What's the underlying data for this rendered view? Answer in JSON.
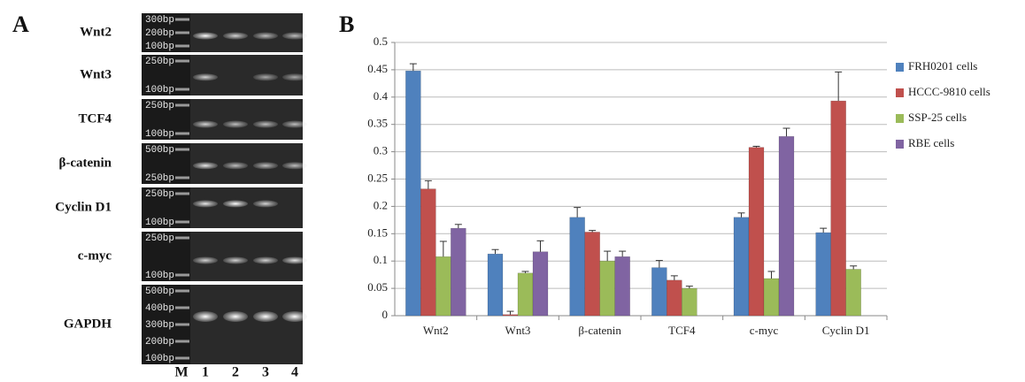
{
  "panel_a": {
    "label": "A",
    "lanes": [
      "M",
      "1",
      "2",
      "3",
      "4"
    ],
    "rows": [
      {
        "gene": "Wnt2",
        "markers": [
          "300bp",
          "200bp",
          "100bp"
        ]
      },
      {
        "gene": "Wnt3",
        "markers": [
          "250bp",
          "100bp"
        ]
      },
      {
        "gene": "TCF4",
        "markers": [
          "250bp",
          "100bp"
        ]
      },
      {
        "gene": "β-catenin",
        "markers": [
          "500bp",
          "250bp"
        ]
      },
      {
        "gene": "Cyclin D1",
        "markers": [
          "250bp",
          "100bp"
        ]
      },
      {
        "gene": "c-myc",
        "markers": [
          "250bp",
          "100bp"
        ]
      },
      {
        "gene": "GAPDH",
        "markers": [
          "500bp",
          "400bp",
          "300bp",
          "200bp",
          "100bp"
        ]
      }
    ]
  },
  "chart_data": {
    "type": "bar",
    "panel_label": "B",
    "categories": [
      "Wnt2",
      "Wnt3",
      "β-catenin",
      "TCF4",
      "c-myc",
      "Cyclin D1"
    ],
    "series": [
      {
        "name": "FRH0201 cells",
        "color": "#4f81bd",
        "values": [
          0.448,
          0.113,
          0.18,
          0.088,
          0.18,
          0.152
        ],
        "errors": [
          0.013,
          0.008,
          0.018,
          0.013,
          0.008,
          0.008
        ]
      },
      {
        "name": "HCCC-9810 cells",
        "color": "#c0504d",
        "values": [
          0.232,
          0.002,
          0.153,
          0.065,
          0.308,
          0.393
        ],
        "errors": [
          0.015,
          0.006,
          0.003,
          0.008,
          0.002,
          0.053
        ]
      },
      {
        "name": "SSP-25 cells",
        "color": "#9bbb59",
        "values": [
          0.108,
          0.078,
          0.1,
          0.05,
          0.068,
          0.085
        ],
        "errors": [
          0.028,
          0.003,
          0.018,
          0.004,
          0.013,
          0.006
        ]
      },
      {
        "name": "RBE cells",
        "color": "#8064a2",
        "values": [
          0.16,
          0.117,
          0.108,
          null,
          0.328,
          null
        ],
        "errors": [
          0.007,
          0.02,
          0.01,
          null,
          0.015,
          null
        ]
      }
    ],
    "ylim": [
      0,
      0.5
    ],
    "yticks": [
      0,
      0.05,
      0.1,
      0.15,
      0.2,
      0.25,
      0.3,
      0.35,
      0.4,
      0.45,
      0.5
    ],
    "grid": true,
    "legend": "right"
  }
}
